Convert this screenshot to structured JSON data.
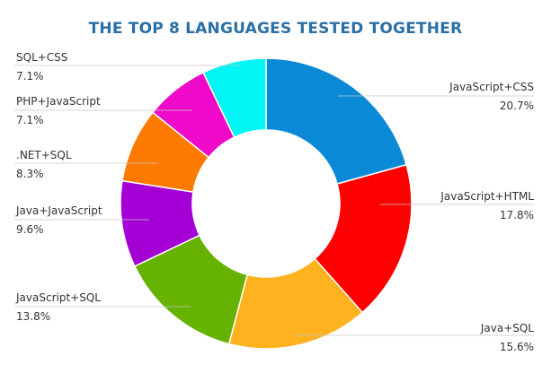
{
  "chart_data": {
    "type": "pie",
    "title": "THE TOP 8 LANGUAGES TESTED TOGETHER",
    "donut": true,
    "slices": [
      {
        "label": "JavaScript+CSS",
        "value": 20.7,
        "value_label": "20.7%",
        "color": "#0a8ad6"
      },
      {
        "label": "JavaScript+HTML",
        "value": 17.8,
        "value_label": "17.8%",
        "color": "#ff0000"
      },
      {
        "label": "Java+SQL",
        "value": 15.6,
        "value_label": "15.6%",
        "color": "#ffb21f"
      },
      {
        "label": "JavaScript+SQL",
        "value": 13.8,
        "value_label": "13.8%",
        "color": "#66b200"
      },
      {
        "label": "Java+JavaScript",
        "value": 9.6,
        "value_label": "9.6%",
        "color": "#a400d6"
      },
      {
        "label": ".NET+SQL",
        "value": 8.3,
        "value_label": "8.3%",
        "color": "#ff7a00"
      },
      {
        "label": "PHP+JavaScript",
        "value": 7.1,
        "value_label": "7.1%",
        "color": "#ee0ac8"
      },
      {
        "label": "SQL+CSS",
        "value": 7.1,
        "value_label": "7.1%",
        "color": "#00f5f5"
      }
    ]
  }
}
